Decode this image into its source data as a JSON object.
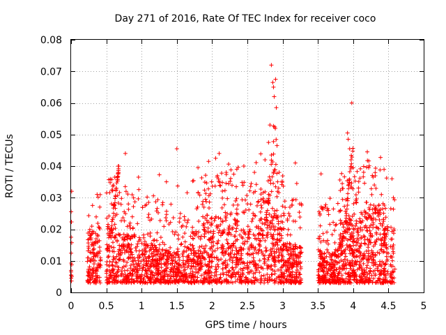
{
  "chart_data": {
    "type": "scatter",
    "title": "Day 271 of 2016, Rate Of TEC Index for receiver coco",
    "xlabel": "GPS time / hours",
    "ylabel": "ROTI / TECUs",
    "xlim": [
      0,
      5
    ],
    "ylim": [
      0,
      0.08
    ],
    "xticks": [
      "0",
      "0.5",
      "1",
      "1.5",
      "2",
      "2.5",
      "3",
      "3.5",
      "4",
      "4.5",
      "5"
    ],
    "yticks": [
      "0",
      "0.01",
      "0.02",
      "0.03",
      "0.04",
      "0.05",
      "0.06",
      "0.07",
      "0.08"
    ],
    "grid": true,
    "marker": "+",
    "color": "#ff0000",
    "series": [
      {
        "name": "ROTI",
        "highlights": [
          [
            0.0,
            0.0175
          ],
          [
            0.0,
            0.007
          ],
          [
            0.0,
            0.0055
          ],
          [
            0.0,
            0.0045
          ],
          [
            0.0,
            0.0065
          ],
          [
            0.58,
            0.0325
          ],
          [
            0.6,
            0.034
          ],
          [
            0.62,
            0.0365
          ],
          [
            0.67,
            0.04
          ],
          [
            0.77,
            0.044
          ],
          [
            0.78,
            0.032
          ],
          [
            1.05,
            0.0275
          ],
          [
            1.1,
            0.0285
          ],
          [
            1.5,
            0.0455
          ],
          [
            1.55,
            0.025
          ],
          [
            1.8,
            0.0395
          ],
          [
            1.95,
            0.0415
          ],
          [
            2.05,
            0.0425
          ],
          [
            2.1,
            0.044
          ],
          [
            2.2,
            0.038
          ],
          [
            2.35,
            0.039
          ],
          [
            2.45,
            0.04
          ],
          [
            2.6,
            0.038
          ],
          [
            2.75,
            0.042
          ],
          [
            2.8,
            0.0475
          ],
          [
            2.82,
            0.053
          ],
          [
            2.84,
            0.072
          ],
          [
            2.86,
            0.0665
          ],
          [
            2.87,
            0.065
          ],
          [
            2.88,
            0.062
          ],
          [
            2.9,
            0.0675
          ],
          [
            2.91,
            0.0585
          ],
          [
            2.92,
            0.0465
          ],
          [
            2.95,
            0.038
          ],
          [
            3.18,
            0.041
          ],
          [
            3.2,
            0.0345
          ],
          [
            3.6,
            0.027
          ],
          [
            3.65,
            0.026
          ],
          [
            3.92,
            0.0505
          ],
          [
            3.93,
            0.0485
          ],
          [
            3.95,
            0.0455
          ],
          [
            3.98,
            0.06
          ],
          [
            3.97,
            0.042
          ],
          [
            4.0,
            0.0395
          ],
          [
            4.2,
            0.0445
          ],
          [
            4.22,
            0.0395
          ],
          [
            4.3,
            0.034
          ],
          [
            4.4,
            0.031
          ],
          [
            4.55,
            0.036
          ],
          [
            4.57,
            0.03
          ]
        ]
      }
    ]
  }
}
